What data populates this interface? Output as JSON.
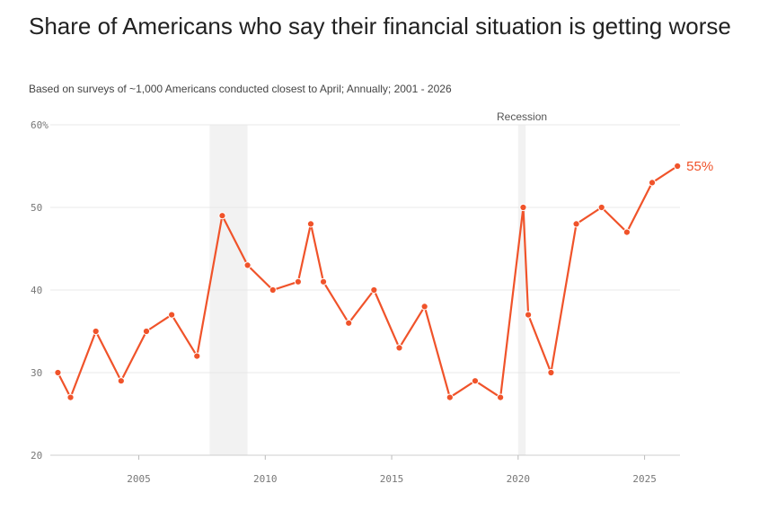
{
  "header": {
    "title": "Share of Americans who say their financial situation is getting worse",
    "subtitle": "Based on surveys of ~1,000 Americans conducted closest to April; Annually; 2001 - 2026"
  },
  "chart_data": {
    "type": "line",
    "title": "Share of Americans who say their financial situation is getting worse",
    "subtitle": "Based on surveys of ~1,000 Americans conducted closest to April; Annually; 2001 - 2026",
    "xlabel": "",
    "ylabel": "",
    "xlim": [
      2001.5,
      2026.4
    ],
    "ylim": [
      20,
      60
    ],
    "x_ticks": [
      2005,
      2010,
      2015,
      2020,
      2025
    ],
    "y_ticks": [
      {
        "value": 20,
        "label": "20"
      },
      {
        "value": 30,
        "label": "30"
      },
      {
        "value": 40,
        "label": "40"
      },
      {
        "value": 50,
        "label": "50"
      },
      {
        "value": 60,
        "label": "60%"
      }
    ],
    "grid": true,
    "line_color": "#f0532a",
    "recession_color": "#f2f2f2",
    "recessions": [
      {
        "start": 2007.8,
        "end": 2009.3,
        "label": ""
      },
      {
        "start": 2020.0,
        "end": 2020.3,
        "label": "Recession"
      }
    ],
    "series": [
      {
        "points": [
          {
            "x": 2001.8,
            "y": 30
          },
          {
            "x": 2002.3,
            "y": 27
          },
          {
            "x": 2003.3,
            "y": 35
          },
          {
            "x": 2004.3,
            "y": 29
          },
          {
            "x": 2005.3,
            "y": 35
          },
          {
            "x": 2006.3,
            "y": 37
          },
          {
            "x": 2007.3,
            "y": 32
          },
          {
            "x": 2008.3,
            "y": 49
          },
          {
            "x": 2009.3,
            "y": 43
          },
          {
            "x": 2010.3,
            "y": 40
          },
          {
            "x": 2011.3,
            "y": 41
          },
          {
            "x": 2011.8,
            "y": 48
          },
          {
            "x": 2012.3,
            "y": 41
          },
          {
            "x": 2013.3,
            "y": 36
          },
          {
            "x": 2014.3,
            "y": 40
          },
          {
            "x": 2015.3,
            "y": 33
          },
          {
            "x": 2016.3,
            "y": 38
          },
          {
            "x": 2017.3,
            "y": 27
          },
          {
            "x": 2018.3,
            "y": 29
          },
          {
            "x": 2019.3,
            "y": 27
          },
          {
            "x": 2020.2,
            "y": 50
          },
          {
            "x": 2020.4,
            "y": 37
          },
          {
            "x": 2021.3,
            "y": 30
          },
          {
            "x": 2022.3,
            "y": 48
          },
          {
            "x": 2023.3,
            "y": 50
          },
          {
            "x": 2024.3,
            "y": 47
          },
          {
            "x": 2025.3,
            "y": 53
          },
          {
            "x": 2026.3,
            "y": 55
          }
        ]
      }
    ],
    "end_label": "55%"
  }
}
